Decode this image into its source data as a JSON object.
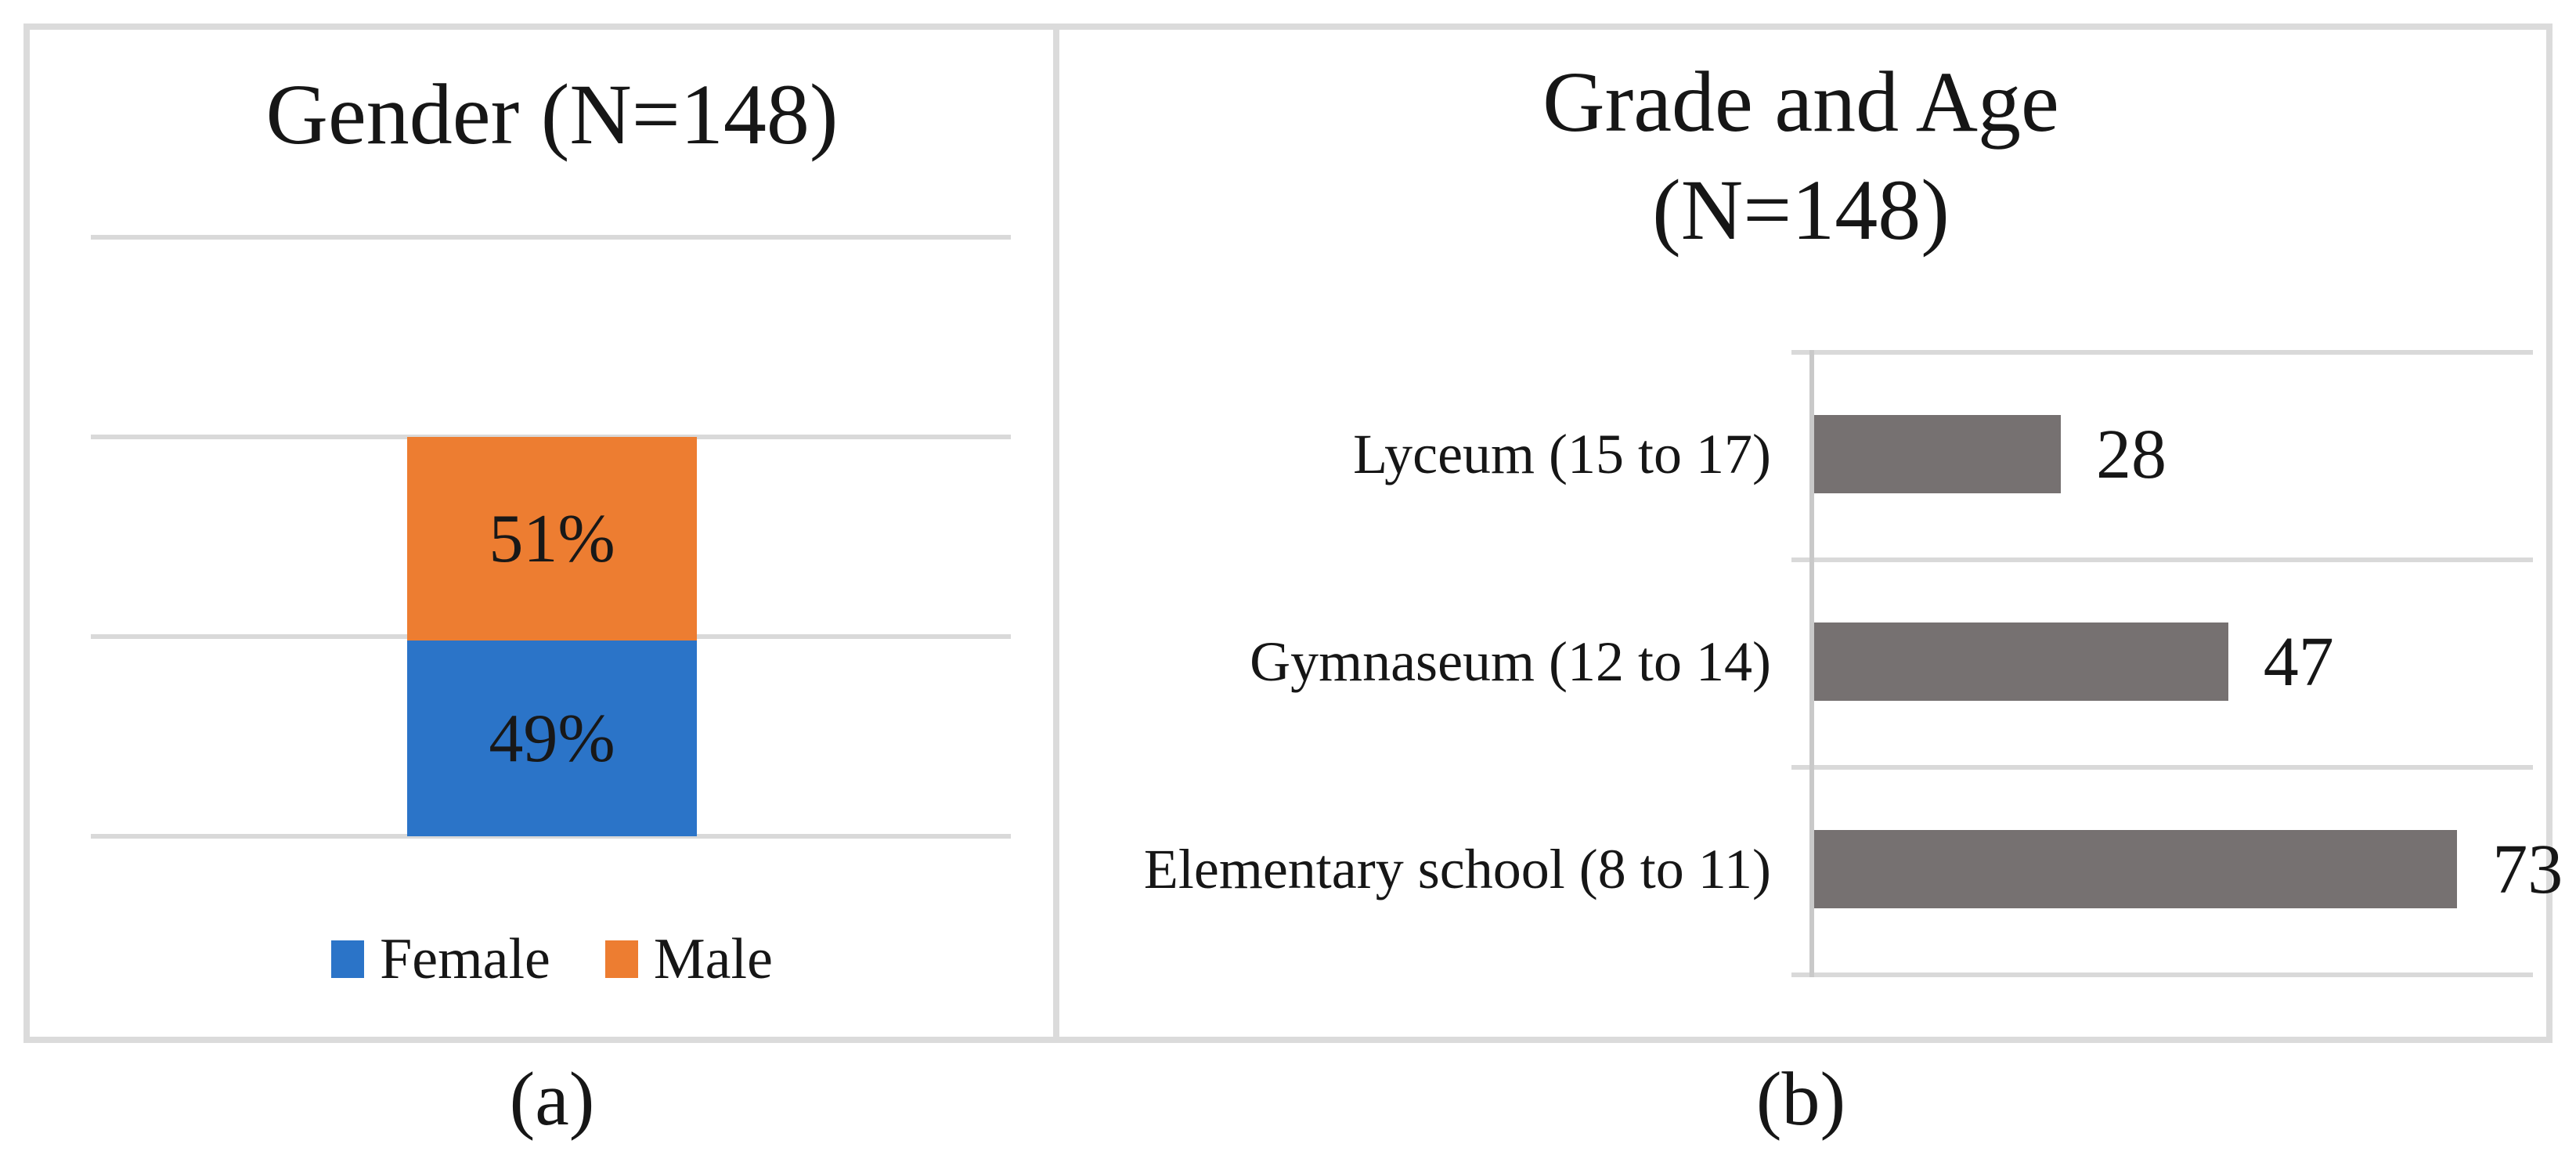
{
  "figure": {
    "panel_a": {
      "title": "Gender (N=148)",
      "male_pct_label": "51%",
      "female_pct_label": "49%",
      "legend": {
        "female": "Female",
        "male": "Male"
      },
      "caption": "(a)"
    },
    "panel_b": {
      "title_line1": "Grade and Age",
      "title_line2": "(N=148)",
      "rows": [
        {
          "label": "Lyceum (15 to 17)",
          "value": "28"
        },
        {
          "label": "Gymnaseum (12 to 14)",
          "value": "47"
        },
        {
          "label": "Elementary school (8 to 11)",
          "value": "73"
        }
      ],
      "caption": "(b)"
    }
  },
  "colors": {
    "female_blue": "#2B74C8",
    "male_orange": "#ED7D31",
    "gray_bar": "#767171",
    "grid": "#D9D9D9",
    "border": "#DBDBDB",
    "axis": "#C9C9C9"
  },
  "chart_data": [
    {
      "type": "bar",
      "subtype": "100pct-stacked-column",
      "title": "Gender (N=148)",
      "n": 148,
      "categories": [
        "Gender"
      ],
      "series": [
        {
          "name": "Female",
          "values": [
            49
          ],
          "color": "#2B74C8",
          "data_label": "49%"
        },
        {
          "name": "Male",
          "values": [
            51
          ],
          "color": "#ED7D31",
          "data_label": "51%"
        }
      ],
      "legend_position": "bottom",
      "gridlines": "horizontal",
      "value_axis_visible": false
    },
    {
      "type": "bar",
      "subtype": "horizontal",
      "title": "Grade and Age (N=148)",
      "n": 148,
      "categories": [
        "Lyceum (15 to 17)",
        "Gymnaseum (12 to 14)",
        "Elementary school (8 to 11)"
      ],
      "values": [
        28,
        47,
        73
      ],
      "data_labels": [
        "28",
        "47",
        "73"
      ],
      "color": "#767171",
      "xlim": [
        0,
        80
      ],
      "gridlines": "category-band-separators",
      "value_axis_visible": false
    }
  ]
}
